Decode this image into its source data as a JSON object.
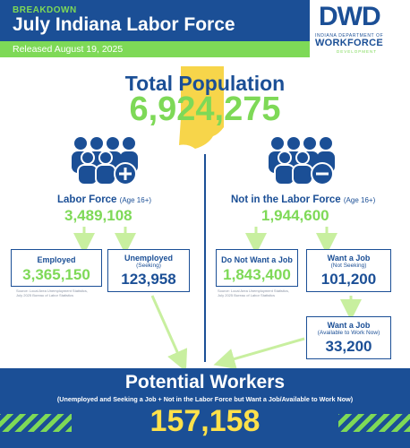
{
  "header": {
    "kicker": "BREAKDOWN",
    "title": "July Indiana Labor Force",
    "released": "Released August 19, 2025"
  },
  "logo": {
    "mark": "DWD",
    "line1": "INDIANA DEPARTMENT OF",
    "line2": "WORKFORCE",
    "line3": "DEVELOPMENT"
  },
  "total": {
    "label": "Total Population",
    "value": "6,924,275"
  },
  "labor_force": {
    "label": "Labor Force",
    "qualifier": "(Age 16+)",
    "value": "3,489,108",
    "employed": {
      "label": "Employed",
      "value": "3,365,150"
    },
    "unemployed": {
      "label": "Unemployed",
      "sub": "(Seeking)",
      "value": "123,958"
    },
    "source": [
      "Source: Local Area Unemployment Statistics,",
      "July 2025 Bureau of Labor Statistics"
    ]
  },
  "not_in_labor_force": {
    "label": "Not in the Labor Force",
    "qualifier": "(Age 16+)",
    "value": "1,944,600",
    "do_not_want": {
      "label": "Do Not Want a Job",
      "value": "1,843,400"
    },
    "want_not_seeking": {
      "label": "Want a Job",
      "sub": "(Not Seeking)",
      "value": "101,200"
    },
    "want_available": {
      "label": "Want a Job",
      "sub": "(Available to Work Now)",
      "value": "33,200"
    },
    "source": [
      "Source: Local Area Unemployment Statistics,",
      "July 2025 Bureau of Labor Statistics"
    ]
  },
  "footer": {
    "title": "Potential Workers",
    "subtitle": "(Unemployed and Seeking a Job + Not in the Labor Force but Want a Job/Available to Work Now)",
    "value": "157,158"
  },
  "colors": {
    "navy": "#1b4f96",
    "green": "#7ed957",
    "yellow": "#ffe14a",
    "state": "#f7d54a"
  }
}
